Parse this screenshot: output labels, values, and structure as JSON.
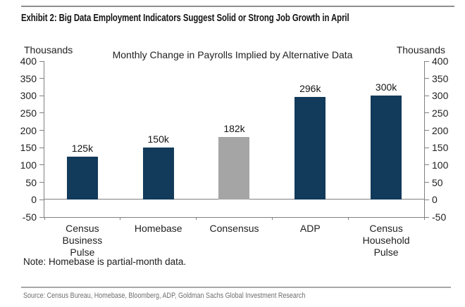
{
  "header": {
    "title": "Exhibit 2: Big Data Employment Indicators Suggest Solid or Strong Job Growth in April"
  },
  "chart": {
    "title": "Monthly Change in Payrolls Implied by Alternative Data",
    "left_axis_title": "Thousands",
    "right_axis_title": "Thousands"
  },
  "chart_data": {
    "type": "bar",
    "title": "Monthly Change in Payrolls Implied by Alternative Data",
    "categories": [
      "Census\nBusiness\nPulse",
      "Homebase",
      "Consensus",
      "ADP",
      "Census\nHousehold\nPulse"
    ],
    "values": [
      125,
      150,
      182,
      296,
      300
    ],
    "data_labels": [
      "125k",
      "150k",
      "182k",
      "296k",
      "300k"
    ],
    "bar_colors": [
      "#123A5B",
      "#123A5B",
      "#A5A5A5",
      "#123A5B",
      "#123A5B"
    ],
    "ylabel_left": "Thousands",
    "ylabel_right": "Thousands",
    "ylim": [
      -50,
      400
    ],
    "yticks": [
      400,
      350,
      300,
      250,
      200,
      150,
      100,
      50,
      0,
      -50
    ],
    "grid": false,
    "legend": false
  },
  "note": "Note: Homebase is partial-month data.",
  "source": "Source: Census Bureau, Homebase, Bloomberg, ADP, Goldman Sachs Global Investment Research",
  "colors": {
    "bar_navy": "#123A5B",
    "bar_gray": "#A5A5A5",
    "axis_line": "#808080",
    "rule_gray": "#9a9a9a"
  }
}
